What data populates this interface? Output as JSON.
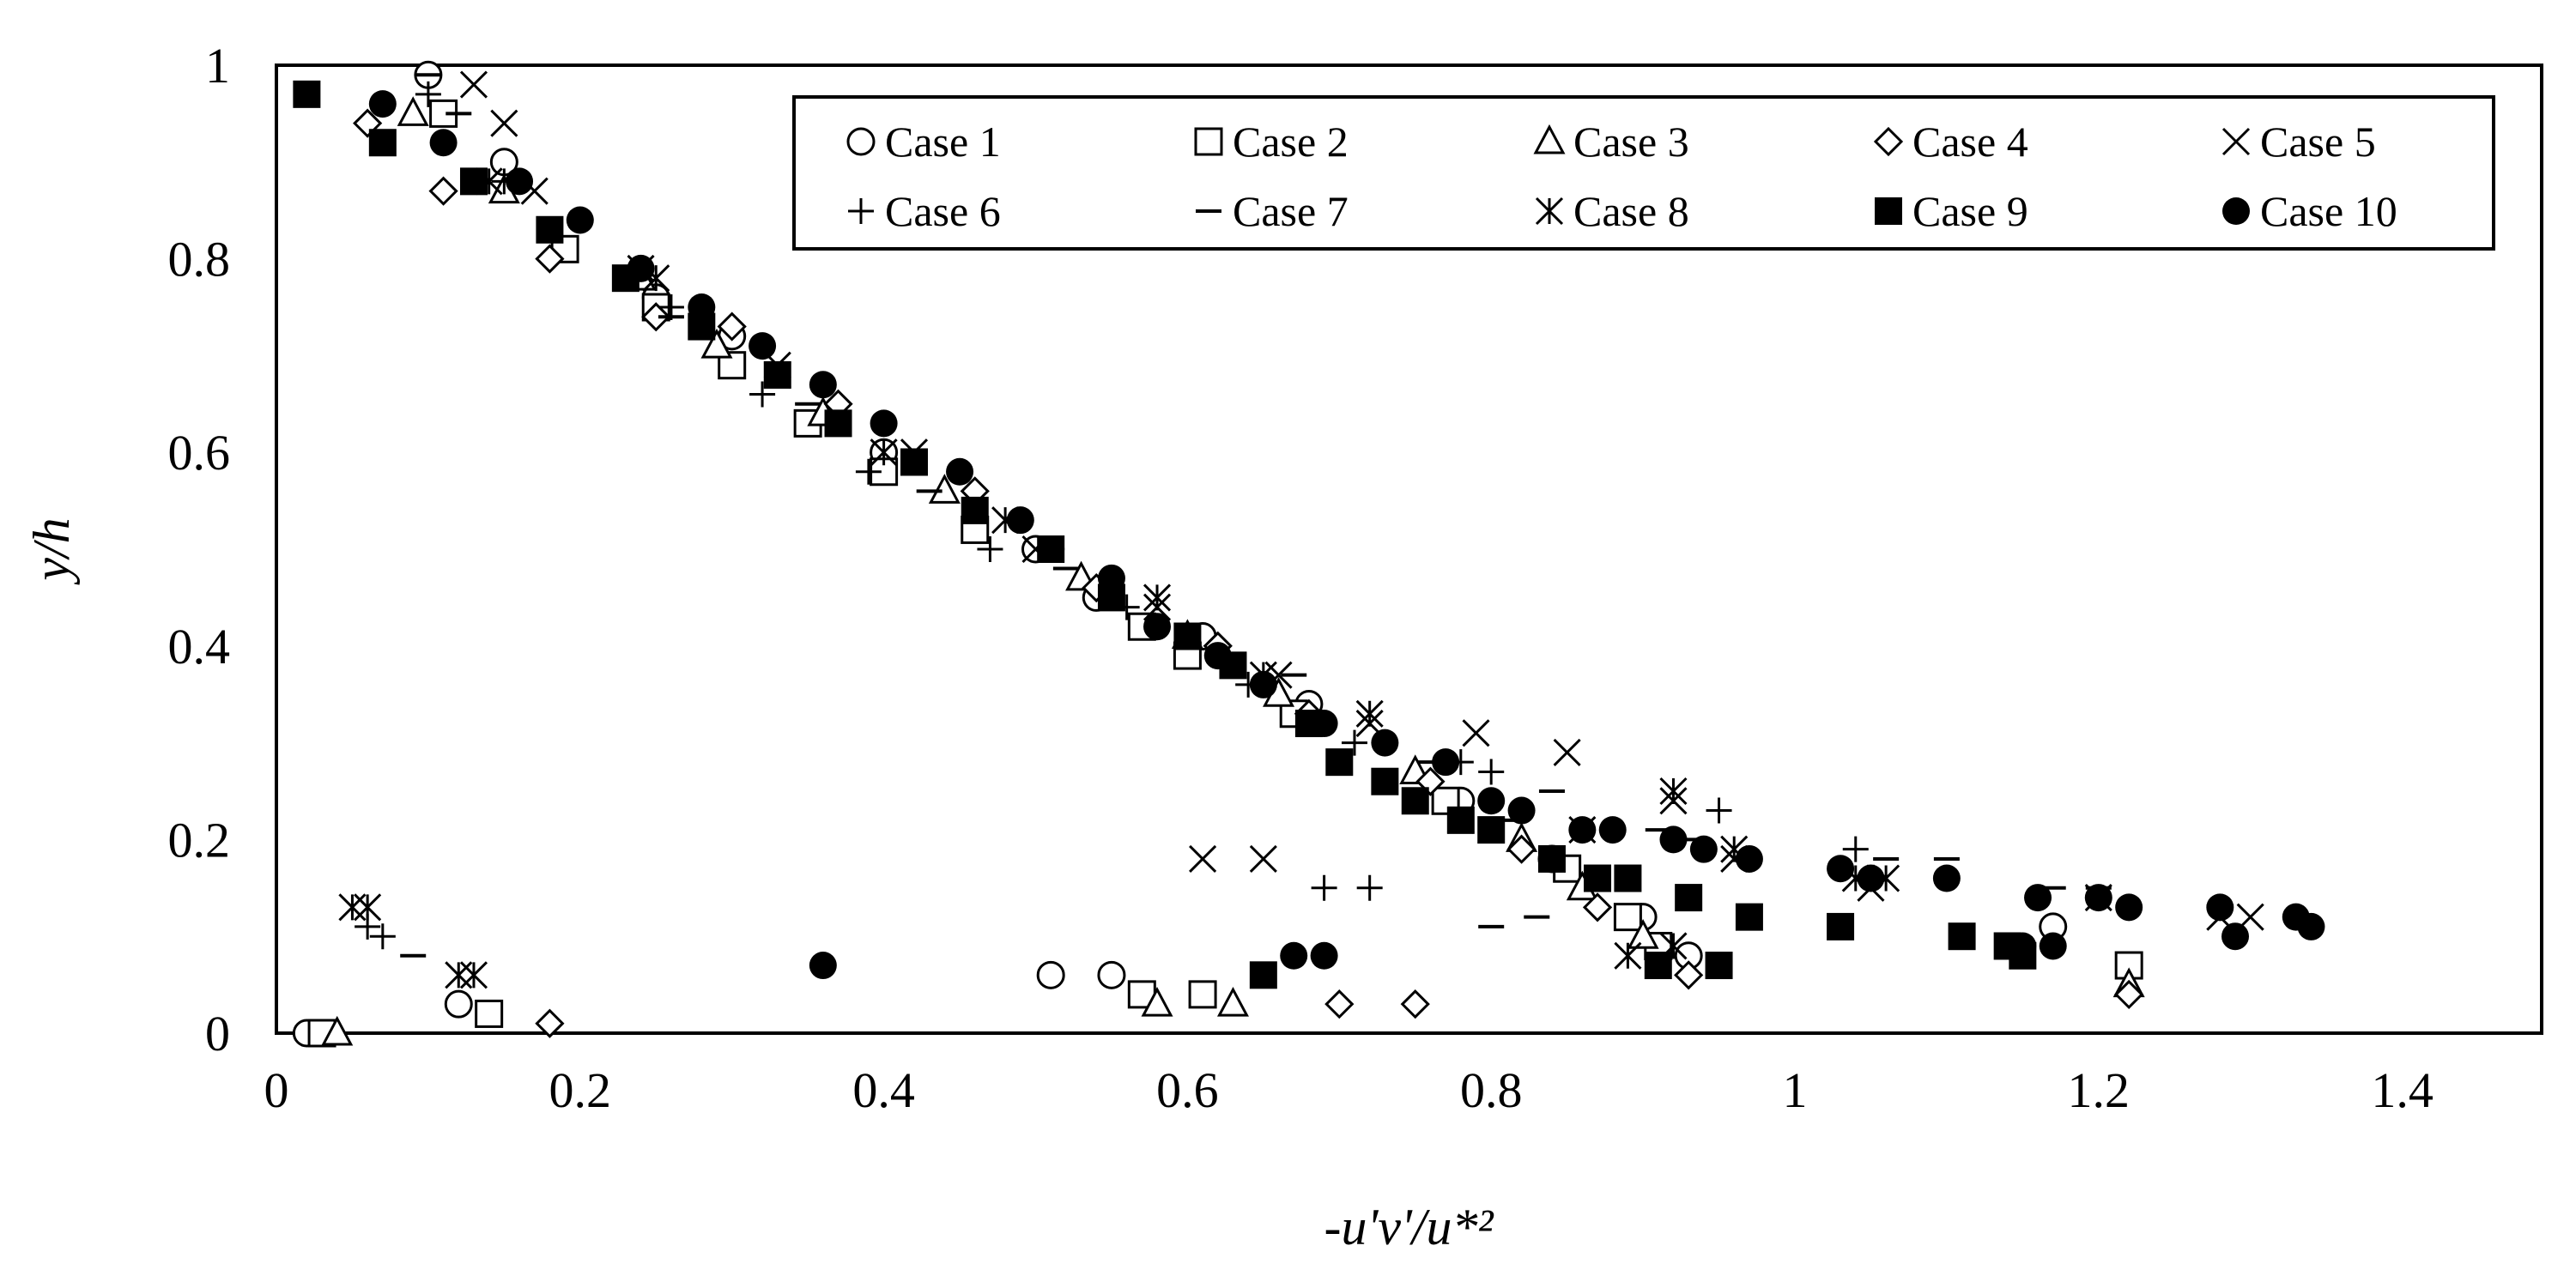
{
  "chart_data": {
    "type": "scatter",
    "title": "",
    "xlabel": "-u'v'/u*²",
    "ylabel": "y/h",
    "xlim": [
      0,
      1.5
    ],
    "ylim": [
      0,
      1
    ],
    "xticks": [
      "0",
      "0.2",
      "0.4",
      "0.6",
      "0.8",
      "1",
      "1.2",
      "1.4"
    ],
    "yticks": [
      "0",
      "0.2",
      "0.4",
      "0.6",
      "0.8",
      "1"
    ],
    "xtick_values": [
      0,
      0.2,
      0.4,
      0.6,
      0.8,
      1.0,
      1.2,
      1.4
    ],
    "ytick_values": [
      0,
      0.2,
      0.4,
      0.6,
      0.8,
      1.0
    ],
    "grid": false,
    "legend_position": "top-right",
    "series": [
      {
        "name": "Case 1",
        "marker": "circle-open",
        "points": [
          [
            0.1,
            0.99
          ],
          [
            0.15,
            0.9
          ],
          [
            0.25,
            0.76
          ],
          [
            0.3,
            0.72
          ],
          [
            0.4,
            0.6
          ],
          [
            0.5,
            0.5
          ],
          [
            0.54,
            0.45
          ],
          [
            0.61,
            0.41
          ],
          [
            0.68,
            0.34
          ],
          [
            0.78,
            0.24
          ],
          [
            0.84,
            0.18
          ],
          [
            0.9,
            0.12
          ],
          [
            0.93,
            0.08
          ],
          [
            1.17,
            0.11
          ],
          [
            0.12,
            0.03
          ],
          [
            0.51,
            0.06
          ],
          [
            0.55,
            0.06
          ],
          [
            0.02,
            0.0
          ]
        ]
      },
      {
        "name": "Case 2",
        "marker": "square-open",
        "points": [
          [
            0.11,
            0.95
          ],
          [
            0.19,
            0.81
          ],
          [
            0.25,
            0.75
          ],
          [
            0.3,
            0.69
          ],
          [
            0.35,
            0.63
          ],
          [
            0.4,
            0.58
          ],
          [
            0.46,
            0.52
          ],
          [
            0.57,
            0.42
          ],
          [
            0.6,
            0.39
          ],
          [
            0.67,
            0.33
          ],
          [
            0.77,
            0.24
          ],
          [
            0.85,
            0.17
          ],
          [
            0.89,
            0.12
          ],
          [
            0.91,
            0.09
          ],
          [
            1.22,
            0.07
          ],
          [
            0.14,
            0.02
          ],
          [
            0.57,
            0.04
          ],
          [
            0.61,
            0.04
          ],
          [
            0.03,
            0.0
          ]
        ]
      },
      {
        "name": "Case 3",
        "marker": "triangle-open",
        "points": [
          [
            0.09,
            0.95
          ],
          [
            0.15,
            0.87
          ],
          [
            0.24,
            0.78
          ],
          [
            0.29,
            0.71
          ],
          [
            0.36,
            0.64
          ],
          [
            0.44,
            0.56
          ],
          [
            0.53,
            0.47
          ],
          [
            0.6,
            0.41
          ],
          [
            0.66,
            0.35
          ],
          [
            0.75,
            0.27
          ],
          [
            0.82,
            0.2
          ],
          [
            0.86,
            0.15
          ],
          [
            0.9,
            0.1
          ],
          [
            1.22,
            0.05
          ],
          [
            0.58,
            0.03
          ],
          [
            0.63,
            0.03
          ],
          [
            0.04,
            0.0
          ]
        ]
      },
      {
        "name": "Case 4",
        "marker": "diamond-open",
        "points": [
          [
            0.06,
            0.94
          ],
          [
            0.11,
            0.87
          ],
          [
            0.18,
            0.8
          ],
          [
            0.25,
            0.74
          ],
          [
            0.3,
            0.73
          ],
          [
            0.37,
            0.65
          ],
          [
            0.46,
            0.56
          ],
          [
            0.54,
            0.46
          ],
          [
            0.62,
            0.4
          ],
          [
            0.68,
            0.33
          ],
          [
            0.76,
            0.26
          ],
          [
            0.82,
            0.19
          ],
          [
            0.87,
            0.13
          ],
          [
            0.93,
            0.06
          ],
          [
            1.22,
            0.04
          ],
          [
            0.7,
            0.03
          ],
          [
            0.75,
            0.03
          ],
          [
            0.18,
            0.01
          ]
        ]
      },
      {
        "name": "Case 5",
        "marker": "x",
        "points": [
          [
            0.13,
            0.98
          ],
          [
            0.15,
            0.94
          ],
          [
            0.17,
            0.87
          ],
          [
            0.24,
            0.79
          ],
          [
            0.33,
            0.69
          ],
          [
            0.42,
            0.6
          ],
          [
            0.5,
            0.5
          ],
          [
            0.58,
            0.44
          ],
          [
            0.66,
            0.37
          ],
          [
            0.72,
            0.32
          ],
          [
            0.79,
            0.31
          ],
          [
            0.85,
            0.29
          ],
          [
            0.61,
            0.18
          ],
          [
            0.65,
            0.18
          ],
          [
            0.92,
            0.24
          ],
          [
            0.96,
            0.18
          ],
          [
            1.05,
            0.15
          ],
          [
            1.28,
            0.12
          ],
          [
            1.3,
            0.12
          ]
        ]
      },
      {
        "name": "Case  6",
        "marker": "plus",
        "points": [
          [
            0.1,
            0.97
          ],
          [
            0.15,
            0.88
          ],
          [
            0.26,
            0.75
          ],
          [
            0.32,
            0.66
          ],
          [
            0.39,
            0.58
          ],
          [
            0.47,
            0.5
          ],
          [
            0.56,
            0.44
          ],
          [
            0.64,
            0.36
          ],
          [
            0.71,
            0.3
          ],
          [
            0.78,
            0.28
          ],
          [
            0.8,
            0.27
          ],
          [
            0.95,
            0.23
          ],
          [
            0.69,
            0.15
          ],
          [
            0.72,
            0.15
          ],
          [
            1.04,
            0.19
          ],
          [
            0.06,
            0.11
          ],
          [
            0.07,
            0.1
          ]
        ]
      },
      {
        "name": "Case 7",
        "marker": "dash",
        "points": [
          [
            0.1,
            0.99
          ],
          [
            0.12,
            0.95
          ],
          [
            0.24,
            0.79
          ],
          [
            0.26,
            0.74
          ],
          [
            0.35,
            0.65
          ],
          [
            0.43,
            0.56
          ],
          [
            0.52,
            0.48
          ],
          [
            0.6,
            0.42
          ],
          [
            0.67,
            0.37
          ],
          [
            0.76,
            0.28
          ],
          [
            0.81,
            0.22
          ],
          [
            0.84,
            0.25
          ],
          [
            0.91,
            0.21
          ],
          [
            0.93,
            0.2
          ],
          [
            1.06,
            0.18
          ],
          [
            1.1,
            0.18
          ],
          [
            1.17,
            0.15
          ],
          [
            1.2,
            0.15
          ],
          [
            0.8,
            0.11
          ],
          [
            0.83,
            0.12
          ],
          [
            0.09,
            0.08
          ]
        ]
      },
      {
        "name": "Case 8",
        "marker": "asterisk",
        "points": [
          [
            0.14,
            0.88
          ],
          [
            0.25,
            0.78
          ],
          [
            0.33,
            0.68
          ],
          [
            0.4,
            0.6
          ],
          [
            0.48,
            0.53
          ],
          [
            0.58,
            0.45
          ],
          [
            0.65,
            0.37
          ],
          [
            0.72,
            0.33
          ],
          [
            0.78,
            0.22
          ],
          [
            0.86,
            0.21
          ],
          [
            0.92,
            0.25
          ],
          [
            0.96,
            0.19
          ],
          [
            1.04,
            0.16
          ],
          [
            1.06,
            0.16
          ],
          [
            1.2,
            0.14
          ],
          [
            0.89,
            0.08
          ],
          [
            0.92,
            0.09
          ],
          [
            0.05,
            0.13
          ],
          [
            0.06,
            0.13
          ],
          [
            0.12,
            0.06
          ],
          [
            0.13,
            0.06
          ]
        ]
      },
      {
        "name": "Case 9",
        "marker": "square-filled",
        "points": [
          [
            0.02,
            0.97
          ],
          [
            0.07,
            0.92
          ],
          [
            0.13,
            0.88
          ],
          [
            0.18,
            0.83
          ],
          [
            0.23,
            0.78
          ],
          [
            0.28,
            0.73
          ],
          [
            0.33,
            0.68
          ],
          [
            0.37,
            0.63
          ],
          [
            0.42,
            0.59
          ],
          [
            0.46,
            0.54
          ],
          [
            0.51,
            0.5
          ],
          [
            0.55,
            0.45
          ],
          [
            0.6,
            0.41
          ],
          [
            0.63,
            0.38
          ],
          [
            0.68,
            0.32
          ],
          [
            0.7,
            0.28
          ],
          [
            0.73,
            0.26
          ],
          [
            0.75,
            0.24
          ],
          [
            0.78,
            0.22
          ],
          [
            0.8,
            0.21
          ],
          [
            0.84,
            0.18
          ],
          [
            0.87,
            0.16
          ],
          [
            0.89,
            0.16
          ],
          [
            0.91,
            0.07
          ],
          [
            0.93,
            0.14
          ],
          [
            0.95,
            0.07
          ],
          [
            0.97,
            0.12
          ],
          [
            1.03,
            0.11
          ],
          [
            1.11,
            0.1
          ],
          [
            1.14,
            0.09
          ],
          [
            1.15,
            0.08
          ],
          [
            0.65,
            0.06
          ]
        ]
      },
      {
        "name": "Case 10",
        "marker": "circle-filled",
        "points": [
          [
            0.07,
            0.96
          ],
          [
            0.11,
            0.92
          ],
          [
            0.16,
            0.88
          ],
          [
            0.2,
            0.84
          ],
          [
            0.24,
            0.79
          ],
          [
            0.28,
            0.75
          ],
          [
            0.32,
            0.71
          ],
          [
            0.36,
            0.67
          ],
          [
            0.4,
            0.63
          ],
          [
            0.45,
            0.58
          ],
          [
            0.49,
            0.53
          ],
          [
            0.51,
            0.5
          ],
          [
            0.55,
            0.47
          ],
          [
            0.58,
            0.42
          ],
          [
            0.62,
            0.39
          ],
          [
            0.65,
            0.36
          ],
          [
            0.69,
            0.32
          ],
          [
            0.73,
            0.3
          ],
          [
            0.77,
            0.28
          ],
          [
            0.8,
            0.24
          ],
          [
            0.82,
            0.23
          ],
          [
            0.86,
            0.21
          ],
          [
            0.88,
            0.21
          ],
          [
            0.92,
            0.2
          ],
          [
            0.94,
            0.19
          ],
          [
            0.97,
            0.18
          ],
          [
            1.03,
            0.17
          ],
          [
            1.05,
            0.16
          ],
          [
            1.1,
            0.16
          ],
          [
            1.16,
            0.14
          ],
          [
            1.2,
            0.14
          ],
          [
            1.22,
            0.13
          ],
          [
            1.28,
            0.13
          ],
          [
            1.29,
            0.1
          ],
          [
            1.33,
            0.12
          ],
          [
            1.34,
            0.11
          ],
          [
            1.17,
            0.09
          ],
          [
            1.15,
            0.09
          ],
          [
            0.67,
            0.08
          ],
          [
            0.69,
            0.08
          ],
          [
            0.36,
            0.07
          ]
        ]
      }
    ]
  }
}
